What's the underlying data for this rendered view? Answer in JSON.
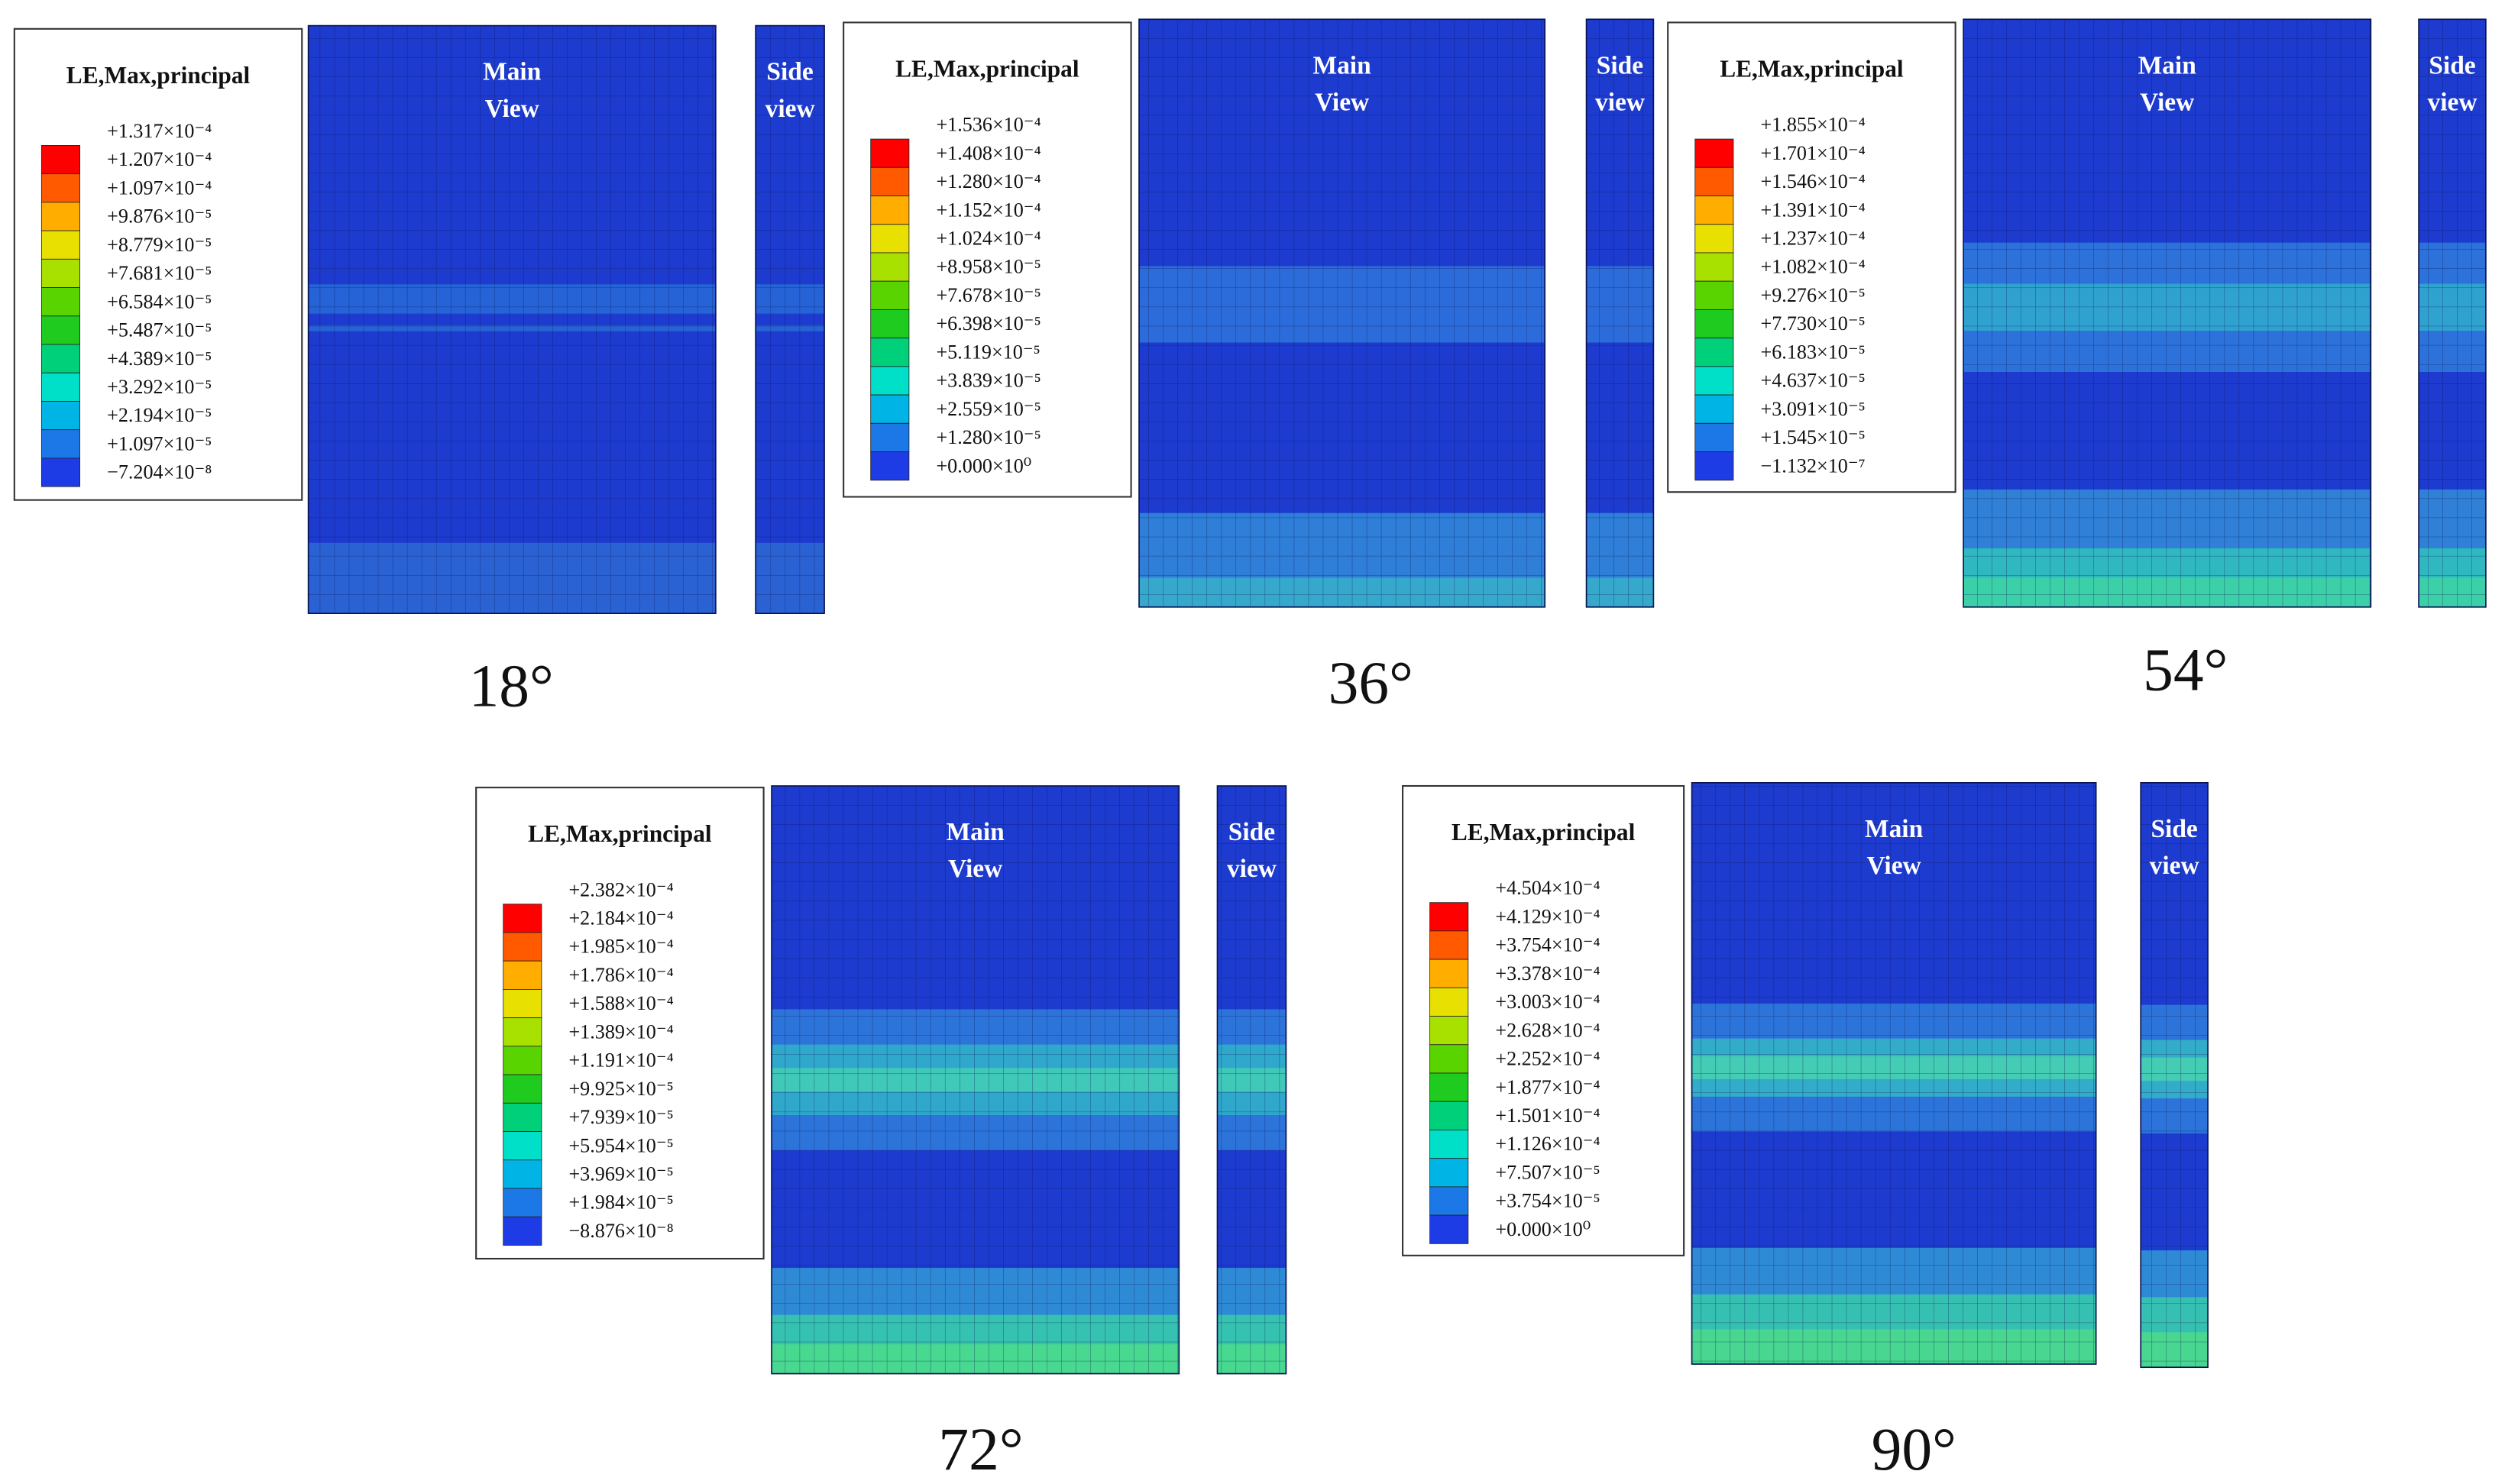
{
  "panels": [
    {
      "legend_title": "LE,Max,principal",
      "legend_labels": [
        "+1.317×10⁻⁴",
        "+1.207×10⁻⁴",
        "+1.097×10⁻⁴",
        "+9.876×10⁻⁵",
        "+8.779×10⁻⁵",
        "+7.681×10⁻⁵",
        "+6.584×10⁻⁵",
        "+5.487×10⁻⁵",
        "+4.389×10⁻⁵",
        "+3.292×10⁻⁵",
        "+2.194×10⁻⁵",
        "+1.097×10⁻⁵",
        "−7.204×10⁻⁸"
      ],
      "main_view": [
        "Main",
        "View"
      ],
      "side_view": [
        "Side",
        "view"
      ],
      "angle": "18°"
    },
    {
      "legend_title": "LE,Max,principal",
      "legend_labels": [
        "+1.536×10⁻⁴",
        "+1.408×10⁻⁴",
        "+1.280×10⁻⁴",
        "+1.152×10⁻⁴",
        "+1.024×10⁻⁴",
        "+8.958×10⁻⁵",
        "+7.678×10⁻⁵",
        "+6.398×10⁻⁵",
        "+5.119×10⁻⁵",
        "+3.839×10⁻⁵",
        "+2.559×10⁻⁵",
        "+1.280×10⁻⁵",
        "+0.000×10⁰"
      ],
      "main_view": [
        "Main",
        "View"
      ],
      "side_view": [
        "Side",
        "view"
      ],
      "angle": "36°"
    },
    {
      "legend_title": "LE,Max,principal",
      "legend_labels": [
        "+1.855×10⁻⁴",
        "+1.701×10⁻⁴",
        "+1.546×10⁻⁴",
        "+1.391×10⁻⁴",
        "+1.237×10⁻⁴",
        "+1.082×10⁻⁴",
        "+9.276×10⁻⁵",
        "+7.730×10⁻⁵",
        "+6.183×10⁻⁵",
        "+4.637×10⁻⁵",
        "+3.091×10⁻⁵",
        "+1.545×10⁻⁵",
        "−1.132×10⁻⁷"
      ],
      "main_view": [
        "Main",
        "View"
      ],
      "side_view": [
        "Side",
        "view"
      ],
      "angle": "54°"
    },
    {
      "legend_title": "LE,Max,principal",
      "legend_labels": [
        "+2.382×10⁻⁴",
        "+2.184×10⁻⁴",
        "+1.985×10⁻⁴",
        "+1.786×10⁻⁴",
        "+1.588×10⁻⁴",
        "+1.389×10⁻⁴",
        "+1.191×10⁻⁴",
        "+9.925×10⁻⁵",
        "+7.939×10⁻⁵",
        "+5.954×10⁻⁵",
        "+3.969×10⁻⁵",
        "+1.984×10⁻⁵",
        "−8.876×10⁻⁸"
      ],
      "main_view": [
        "Main",
        "View"
      ],
      "side_view": [
        "Side",
        "view"
      ],
      "angle": "72°"
    },
    {
      "legend_title": "LE,Max,principal",
      "legend_labels": [
        "+4.504×10⁻⁴",
        "+4.129×10⁻⁴",
        "+3.754×10⁻⁴",
        "+3.378×10⁻⁴",
        "+3.003×10⁻⁴",
        "+2.628×10⁻⁴",
        "+2.252×10⁻⁴",
        "+1.877×10⁻⁴",
        "+1.501×10⁻⁴",
        "+1.126×10⁻⁴",
        "+7.507×10⁻⁵",
        "+3.754×10⁻⁵",
        "+0.000×10⁰"
      ],
      "main_view": [
        "Main",
        "View"
      ],
      "side_view": [
        "Side",
        "view"
      ],
      "angle": "90°"
    }
  ]
}
